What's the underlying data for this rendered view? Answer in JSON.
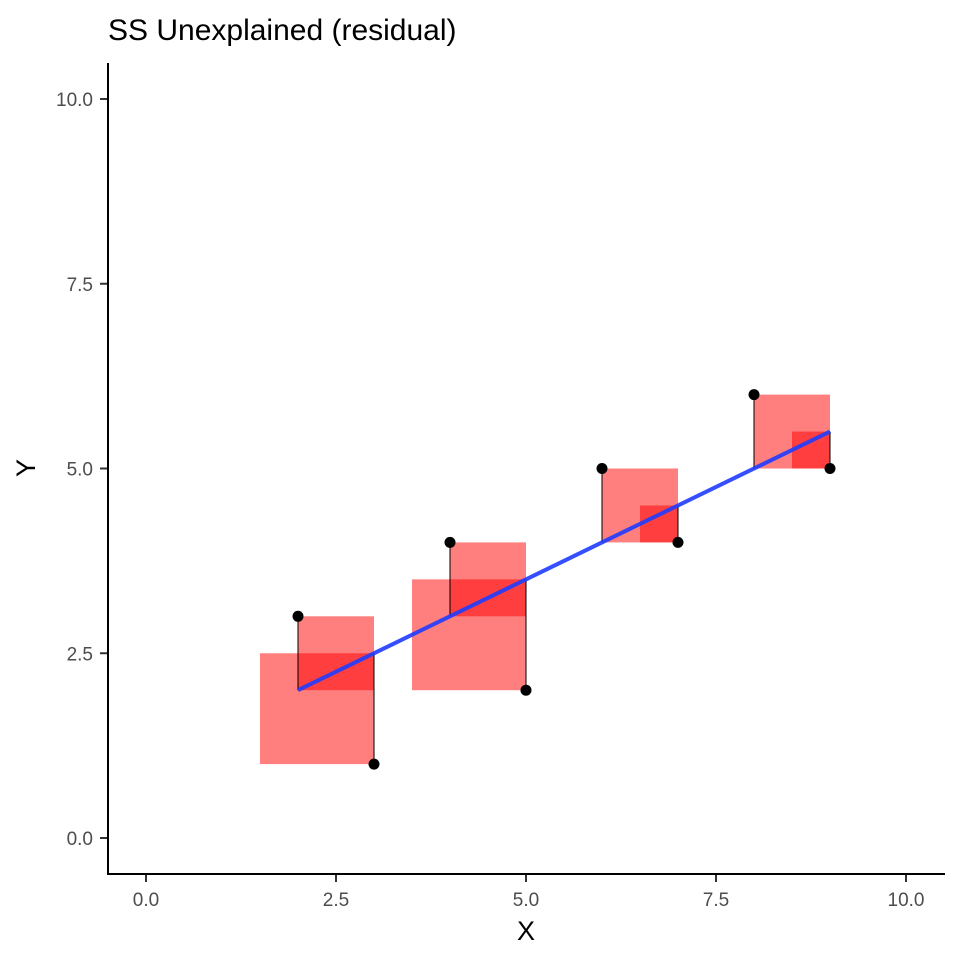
{
  "chart_data": {
    "type": "scatter",
    "title": "SS Unexplained (residual)",
    "xlabel": "X",
    "ylabel": "Y",
    "xlim": [
      0,
      10
    ],
    "ylim": [
      0,
      10
    ],
    "x_ticks": [
      "0.0",
      "2.5",
      "5.0",
      "7.5",
      "10.0"
    ],
    "y_ticks": [
      "0.0",
      "2.5",
      "5.0",
      "7.5",
      "10.0"
    ],
    "grid": false,
    "points": [
      {
        "x": 2,
        "y": 3
      },
      {
        "x": 3,
        "y": 1
      },
      {
        "x": 4,
        "y": 4
      },
      {
        "x": 5,
        "y": 2
      },
      {
        "x": 6,
        "y": 5
      },
      {
        "x": 7,
        "y": 4
      },
      {
        "x": 8,
        "y": 6
      },
      {
        "x": 9,
        "y": 5
      }
    ],
    "regression_line": {
      "intercept": 1.0,
      "slope": 0.5,
      "x_range": [
        2,
        9
      ]
    },
    "colors": {
      "points": "#000000",
      "regression_line": "#1f3cff",
      "residual_squares": "#ff0000",
      "residual_lines": "#000000"
    }
  }
}
